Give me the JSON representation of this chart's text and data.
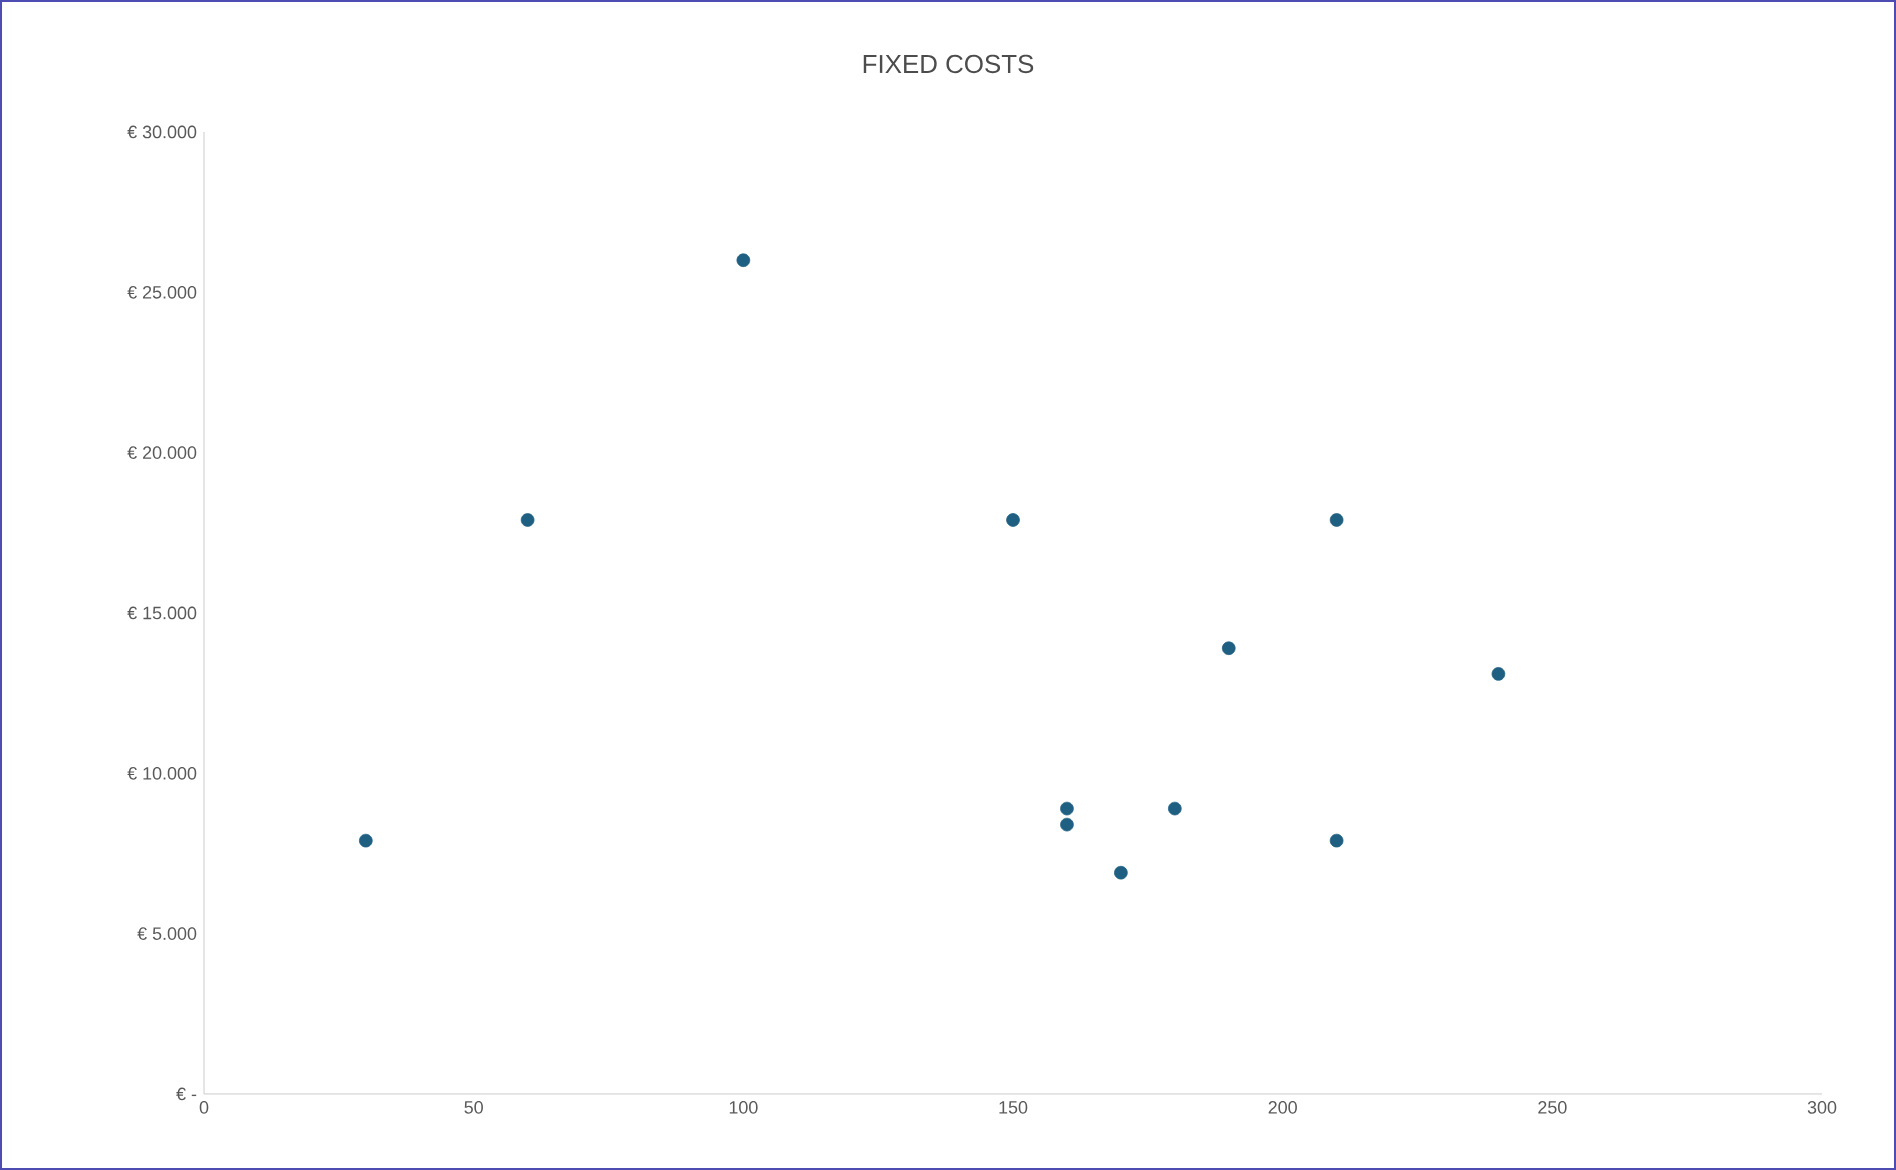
{
  "chart_data": {
    "type": "scatter",
    "title": "FIXED COSTS",
    "x": [
      30,
      60,
      100,
      150,
      210,
      190,
      240,
      160,
      160,
      180,
      170,
      210
    ],
    "values": [
      7900,
      17900,
      26000,
      17900,
      17900,
      13900,
      13100,
      8900,
      8400,
      8900,
      6900,
      7900
    ],
    "color": "#1f5f82",
    "xlim": [
      0,
      300
    ],
    "xticks": [
      0,
      50,
      100,
      150,
      200,
      250,
      300
    ],
    "ylim": [
      0,
      30000
    ],
    "yticks": [
      {
        "value": 0,
        "label": "€ -"
      },
      {
        "value": 5000,
        "label": "€ 5.000"
      },
      {
        "value": 10000,
        "label": "€ 10.000"
      },
      {
        "value": 15000,
        "label": "€ 15.000"
      },
      {
        "value": 20000,
        "label": "€ 20.000"
      },
      {
        "value": 25000,
        "label": "€ 25.000"
      },
      {
        "value": 30000,
        "label": "€ 30.000"
      }
    ],
    "grid": false
  }
}
